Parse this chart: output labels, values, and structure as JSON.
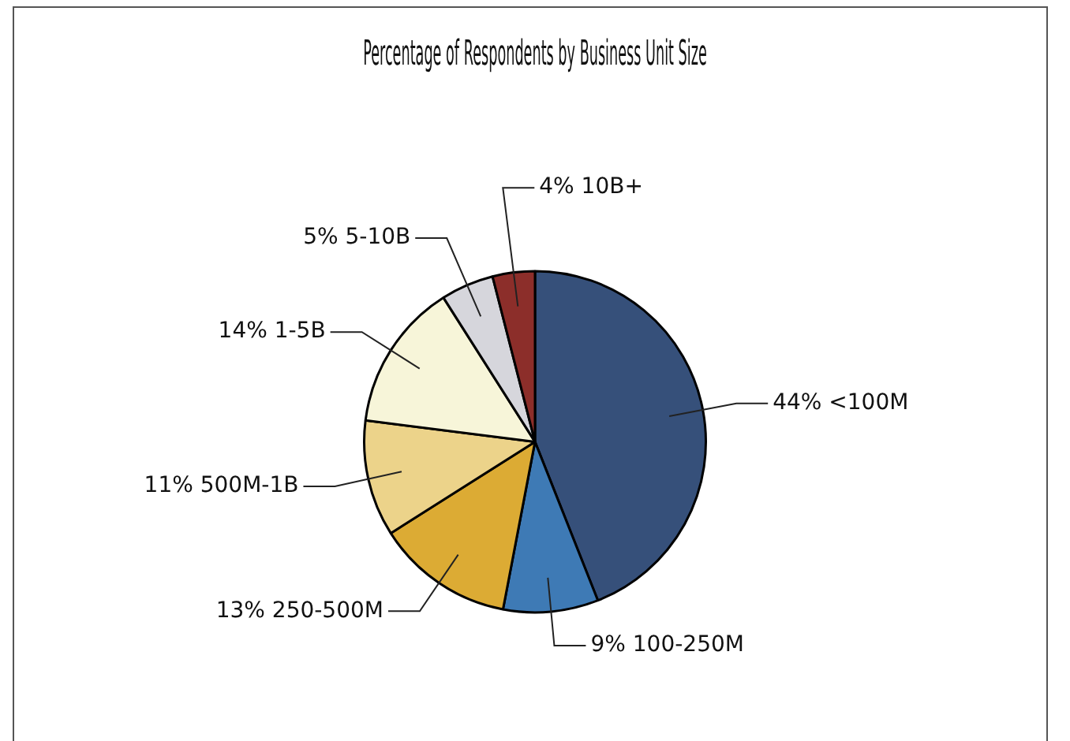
{
  "chart_data": {
    "type": "pie",
    "title": "Percentage of Respondents by Business Unit Size",
    "categories": [
      "<100M",
      "100-250M",
      "250-500M",
      "500M-1B",
      "1-5B",
      "5-10B",
      "10B+"
    ],
    "values": [
      44,
      9,
      13,
      11,
      14,
      5,
      4
    ],
    "colors": [
      "#36507a",
      "#3e7ab5",
      "#dcab34",
      "#ecd38a",
      "#f7f5d9",
      "#d6d6dc",
      "#8c2e2a"
    ],
    "value_labels": [
      "44%",
      "9%",
      "13%",
      "11%",
      "14%",
      "5%",
      "4%"
    ],
    "legend": false
  }
}
